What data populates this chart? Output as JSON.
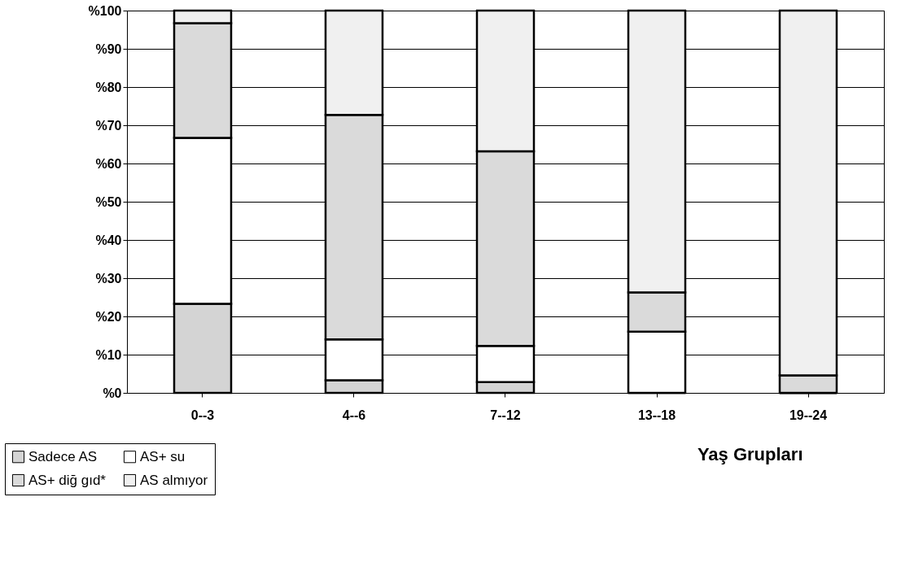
{
  "chart_data": {
    "type": "bar",
    "stacked": true,
    "xlabel": "Yaş Grupları",
    "categories": [
      "0--3",
      "4--6",
      "7--12",
      "13--18",
      "19--24"
    ],
    "series": [
      {
        "name": "Sadece AS",
        "color": "#d4d4d4",
        "values": [
          23.3,
          3.3,
          2.8,
          0,
          0
        ]
      },
      {
        "name": "AS+ su",
        "color": "#ffffff",
        "values": [
          43.4,
          10.7,
          9.5,
          16,
          0
        ]
      },
      {
        "name": "AS+ diğ gıd*",
        "color": "#dadada",
        "values": [
          30,
          58.7,
          50.9,
          10.3,
          4.6
        ]
      },
      {
        "name": "AS almıyor",
        "color": "#f0f0f0",
        "values": [
          3.3,
          27.3,
          36.8,
          73.7,
          95.4
        ]
      }
    ],
    "ylim": [
      0,
      100
    ],
    "yticks": [
      {
        "value": 0,
        "label": "%0"
      },
      {
        "value": 10,
        "label": "%10"
      },
      {
        "value": 20,
        "label": "%20"
      },
      {
        "value": 30,
        "label": "%30"
      },
      {
        "value": 40,
        "label": "%40"
      },
      {
        "value": 50,
        "label": "%50"
      },
      {
        "value": 60,
        "label": "%60"
      },
      {
        "value": 70,
        "label": "%70"
      },
      {
        "value": 80,
        "label": "%80"
      },
      {
        "value": 90,
        "label": "%90"
      },
      {
        "value": 100,
        "label": "%100"
      }
    ],
    "grid": "y",
    "legend": "bottom left"
  }
}
